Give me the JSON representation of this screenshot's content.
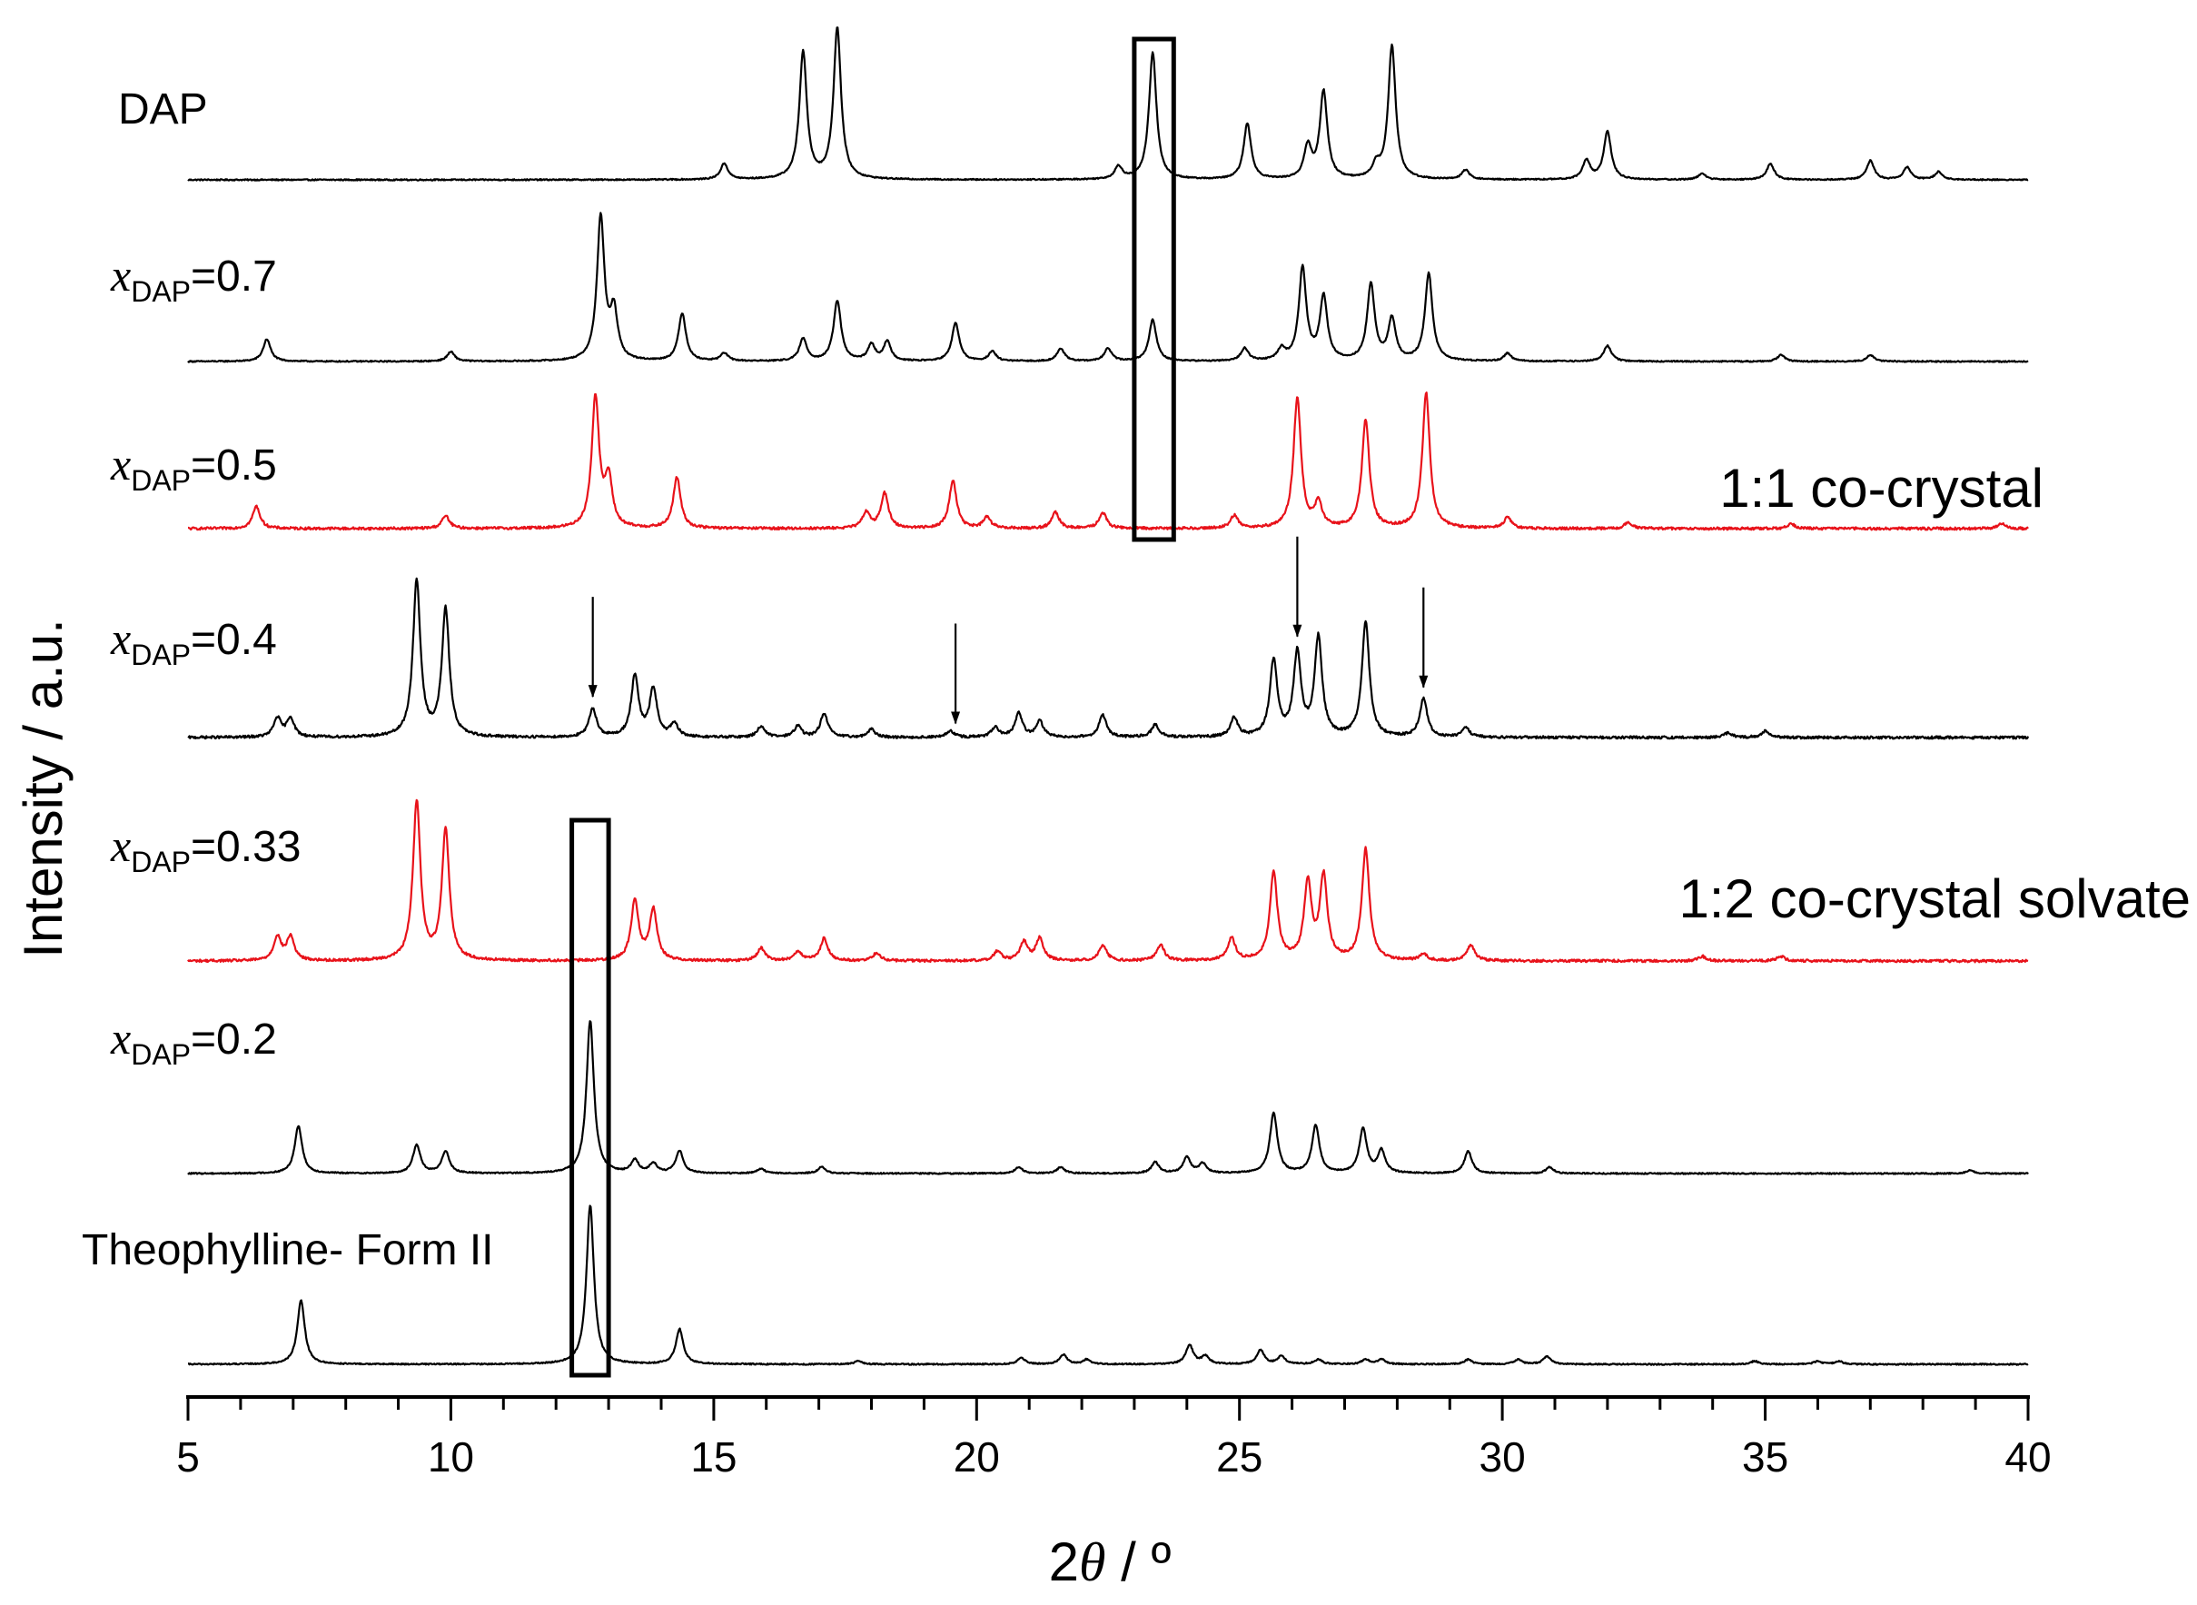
{
  "chart_data": {
    "type": "line",
    "title": "",
    "xlabel_prefix": "2",
    "xlabel_symbol": "θ",
    "xlabel_suffix": " / º",
    "ylabel": "Intensity / a.u.",
    "xlim": [
      5,
      40
    ],
    "xticks": [
      5,
      10,
      15,
      20,
      25,
      30,
      35,
      40
    ],
    "xtick_labels": [
      "5",
      "10",
      "15",
      "20",
      "25",
      "30",
      "35",
      "40"
    ],
    "grid": false,
    "colors": {
      "default": "#000000",
      "highlight": "#e8121a"
    },
    "series": [
      {
        "name": "DAP",
        "label_parts": {
          "text": "DAP"
        },
        "color": "#000000",
        "peaks": [
          [
            15.2,
            10
          ],
          [
            16.7,
            80
          ],
          [
            17.35,
            95
          ],
          [
            22.7,
            8
          ],
          [
            23.35,
            80
          ],
          [
            25.15,
            35
          ],
          [
            26.3,
            20
          ],
          [
            26.6,
            55
          ],
          [
            27.6,
            8
          ],
          [
            27.9,
            84
          ],
          [
            29.3,
            6
          ],
          [
            31.6,
            12
          ],
          [
            32.0,
            30
          ],
          [
            33.8,
            4
          ],
          [
            35.1,
            10
          ],
          [
            37.0,
            12
          ],
          [
            37.7,
            8
          ],
          [
            38.3,
            5
          ]
        ]
      },
      {
        "name": "xDAP=0.7",
        "label_parts": {
          "var": "x",
          "sub": "DAP",
          "val": "=0.7"
        },
        "color": "#000000",
        "peaks": [
          [
            6.5,
            14
          ],
          [
            10.0,
            6
          ],
          [
            12.85,
            90
          ],
          [
            13.1,
            30
          ],
          [
            14.4,
            30
          ],
          [
            15.2,
            5
          ],
          [
            16.7,
            14
          ],
          [
            17.35,
            38
          ],
          [
            18.0,
            10
          ],
          [
            18.3,
            12
          ],
          [
            19.6,
            24
          ],
          [
            20.3,
            6
          ],
          [
            21.6,
            8
          ],
          [
            22.5,
            8
          ],
          [
            23.35,
            26
          ],
          [
            25.1,
            8
          ],
          [
            25.8,
            7
          ],
          [
            26.2,
            58
          ],
          [
            26.6,
            40
          ],
          [
            27.5,
            48
          ],
          [
            27.9,
            26
          ],
          [
            28.6,
            55
          ],
          [
            30.1,
            5
          ],
          [
            32.0,
            10
          ],
          [
            35.3,
            4
          ],
          [
            37.0,
            4
          ]
        ]
      },
      {
        "name": "xDAP=0.5",
        "label_parts": {
          "var": "x",
          "sub": "DAP",
          "val": "=0.5"
        },
        "color": "#e8121a",
        "peaks": [
          [
            6.3,
            14
          ],
          [
            9.9,
            8
          ],
          [
            12.75,
            82
          ],
          [
            13.0,
            30
          ],
          [
            14.3,
            32
          ],
          [
            17.9,
            10
          ],
          [
            18.25,
            22
          ],
          [
            19.55,
            30
          ],
          [
            20.2,
            7
          ],
          [
            21.5,
            10
          ],
          [
            22.4,
            10
          ],
          [
            24.9,
            8
          ],
          [
            26.1,
            82
          ],
          [
            26.5,
            15
          ],
          [
            27.4,
            68
          ],
          [
            28.55,
            85
          ],
          [
            30.1,
            7
          ],
          [
            32.4,
            4
          ],
          [
            35.5,
            3
          ],
          [
            39.5,
            3
          ]
        ]
      },
      {
        "name": "xDAP=0.4",
        "label_parts": {
          "var": "x",
          "sub": "DAP",
          "val": "=0.4"
        },
        "color": "#000000",
        "peaks": [
          [
            6.7,
            12
          ],
          [
            6.95,
            12
          ],
          [
            9.35,
            98
          ],
          [
            9.9,
            80
          ],
          [
            12.7,
            18
          ],
          [
            13.5,
            38
          ],
          [
            13.85,
            30
          ],
          [
            14.25,
            8
          ],
          [
            15.9,
            7
          ],
          [
            16.6,
            7
          ],
          [
            17.1,
            15
          ],
          [
            18.0,
            5
          ],
          [
            19.5,
            4
          ],
          [
            20.35,
            6
          ],
          [
            20.8,
            15
          ],
          [
            21.2,
            10
          ],
          [
            22.4,
            14
          ],
          [
            23.4,
            8
          ],
          [
            24.9,
            12
          ],
          [
            25.65,
            48
          ],
          [
            26.1,
            52
          ],
          [
            26.5,
            62
          ],
          [
            27.4,
            72
          ],
          [
            28.5,
            24
          ],
          [
            29.3,
            6
          ],
          [
            34.3,
            3
          ],
          [
            35.0,
            4
          ]
        ]
      },
      {
        "name": "xDAP=0.33",
        "label_parts": {
          "var": "x",
          "sub": "DAP",
          "val": "=0.33"
        },
        "color": "#e8121a",
        "peaks": [
          [
            6.7,
            15
          ],
          [
            6.95,
            15
          ],
          [
            9.35,
            100
          ],
          [
            9.9,
            82
          ],
          [
            13.5,
            38
          ],
          [
            13.85,
            32
          ],
          [
            15.9,
            8
          ],
          [
            16.6,
            6
          ],
          [
            17.1,
            14
          ],
          [
            18.1,
            5
          ],
          [
            20.4,
            6
          ],
          [
            20.9,
            12
          ],
          [
            21.2,
            14
          ],
          [
            22.4,
            10
          ],
          [
            23.5,
            10
          ],
          [
            24.85,
            14
          ],
          [
            25.65,
            55
          ],
          [
            26.3,
            48
          ],
          [
            26.6,
            52
          ],
          [
            27.4,
            70
          ],
          [
            28.5,
            4
          ],
          [
            29.4,
            10
          ],
          [
            33.8,
            3
          ],
          [
            35.3,
            3
          ]
        ]
      },
      {
        "name": "xDAP=0.2",
        "label_parts": {
          "var": "x",
          "sub": "DAP",
          "val": "=0.2"
        },
        "color": "#000000",
        "peaks": [
          [
            7.1,
            30
          ],
          [
            9.35,
            18
          ],
          [
            9.9,
            14
          ],
          [
            12.65,
            96
          ],
          [
            13.5,
            8
          ],
          [
            13.85,
            6
          ],
          [
            14.35,
            14
          ],
          [
            15.9,
            3
          ],
          [
            17.05,
            4
          ],
          [
            20.8,
            4
          ],
          [
            21.6,
            4
          ],
          [
            23.4,
            7
          ],
          [
            24.0,
            10
          ],
          [
            24.3,
            6
          ],
          [
            25.65,
            38
          ],
          [
            26.45,
            30
          ],
          [
            27.35,
            28
          ],
          [
            27.7,
            14
          ],
          [
            29.35,
            14
          ],
          [
            30.9,
            4
          ],
          [
            38.9,
            2
          ]
        ]
      },
      {
        "name": "Theophylline- Form II",
        "label_parts": {
          "text": "Theophylline- Form II"
        },
        "color": "#000000",
        "peaks": [
          [
            7.15,
            40
          ],
          [
            12.65,
            100
          ],
          [
            14.35,
            22
          ],
          [
            17.75,
            2
          ],
          [
            20.85,
            4
          ],
          [
            21.65,
            6
          ],
          [
            22.1,
            3
          ],
          [
            24.05,
            12
          ],
          [
            24.35,
            5
          ],
          [
            25.4,
            9
          ],
          [
            25.8,
            5
          ],
          [
            26.5,
            3
          ],
          [
            27.4,
            3
          ],
          [
            27.7,
            3
          ],
          [
            29.35,
            3
          ],
          [
            30.3,
            3
          ],
          [
            30.85,
            5
          ],
          [
            34.8,
            2
          ],
          [
            36.0,
            2
          ],
          [
            36.4,
            2
          ]
        ]
      }
    ],
    "annotations": [
      {
        "text": "1:1 co-crystal",
        "series": "xDAP=0.5"
      },
      {
        "text": "1:2 co-crystal solvate",
        "series": "xDAP=0.33"
      }
    ],
    "highlight_boxes": [
      {
        "x": [
          23.0,
          23.75
        ],
        "series_range": [
          "DAP",
          "xDAP=0.5"
        ]
      },
      {
        "x": [
          12.3,
          13.0
        ],
        "series_range": [
          "xDAP=0.33",
          "Theophylline- Form II"
        ]
      }
    ],
    "arrows": [
      {
        "x": 12.7,
        "series": "xDAP=0.4"
      },
      {
        "x": 19.6,
        "series": "xDAP=0.4"
      },
      {
        "x": 26.1,
        "series": "xDAP=0.4"
      },
      {
        "x": 28.5,
        "series": "xDAP=0.4"
      }
    ]
  }
}
